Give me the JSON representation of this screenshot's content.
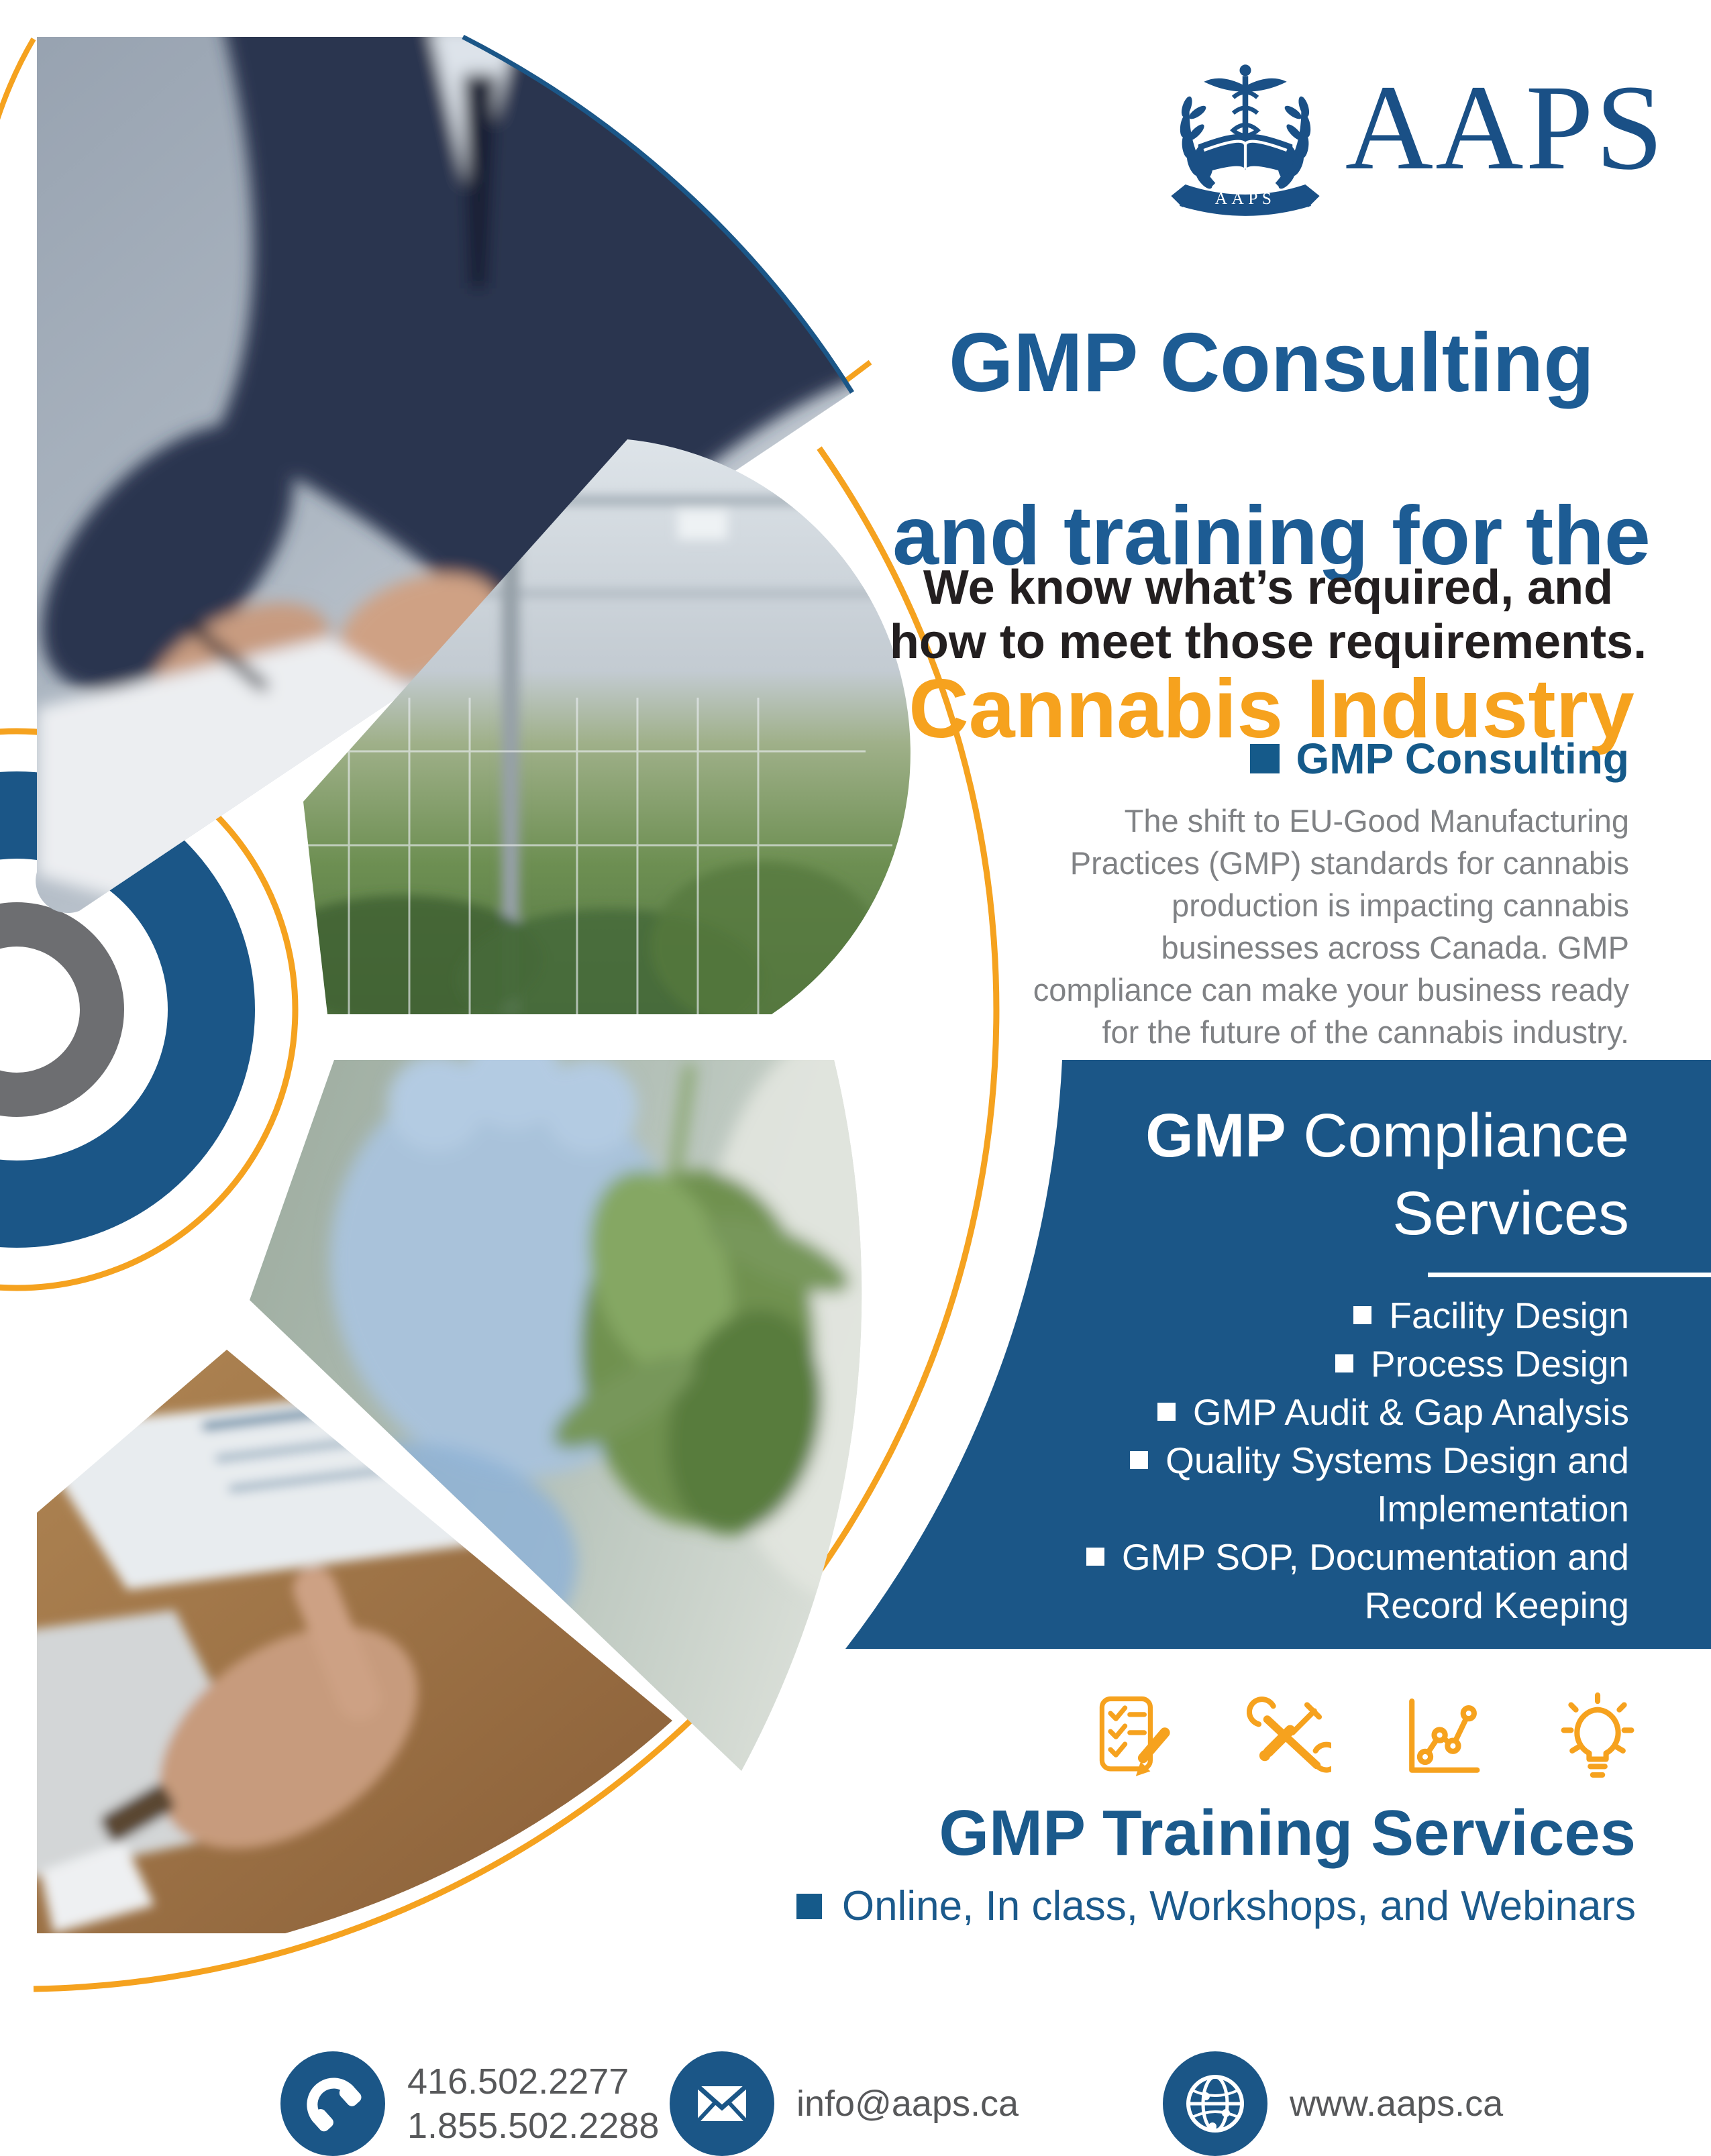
{
  "brand": {
    "wordmark": "AAPS",
    "banner_text": "AAPS"
  },
  "title": {
    "line1": "GMP Consulting",
    "line2": "and training for the",
    "line3": "Cannabis Industry"
  },
  "subtitle": "We know what’s required, and\nhow to meet those requirements.",
  "consulting": {
    "heading": "GMP Consulting",
    "body": "The shift to EU-Good Manufacturing\nPractices (GMP) standards for cannabis\nproduction is impacting cannabis\nbusinesses across Canada. GMP\ncompliance can make your business ready\nfor the future of the cannabis industry."
  },
  "compliance": {
    "heading_line1_strong": "GMP",
    "heading_line1_rest": " Compliance",
    "heading_line2": "Services",
    "items": [
      {
        "bullet": true,
        "text": "Facility Design"
      },
      {
        "bullet": true,
        "text": "Process Design"
      },
      {
        "bullet": true,
        "text": "GMP Audit & Gap Analysis"
      },
      {
        "bullet": true,
        "text": "Quality Systems Design and"
      },
      {
        "bullet": false,
        "text": "Implementation"
      },
      {
        "bullet": true,
        "text": "GMP SOP, Documentation and"
      },
      {
        "bullet": false,
        "text": "Record Keeping"
      }
    ]
  },
  "training": {
    "heading": "GMP Training Services",
    "bullet_line": "Online, In class, Workshops, and Webinars",
    "icons": [
      "checklist-pencil-icon",
      "crossed-tools-icon",
      "analytics-chart-icon",
      "lightbulb-icon"
    ]
  },
  "contact": {
    "phones": "416.502.2277\n1.855.502.2288",
    "email": "info@aaps.ca",
    "website": "www.aaps.ca",
    "icons": [
      "phone-icon",
      "envelope-icon",
      "globe-icon"
    ]
  },
  "colors": {
    "brand_blue": "#1b5687",
    "logo_blue": "#1a5086",
    "title_blue": "#1d5c94",
    "accent_orange": "#f6a21e",
    "body_gray": "#808285",
    "subtitle_black": "#231f20",
    "contact_gray": "#57585a"
  }
}
